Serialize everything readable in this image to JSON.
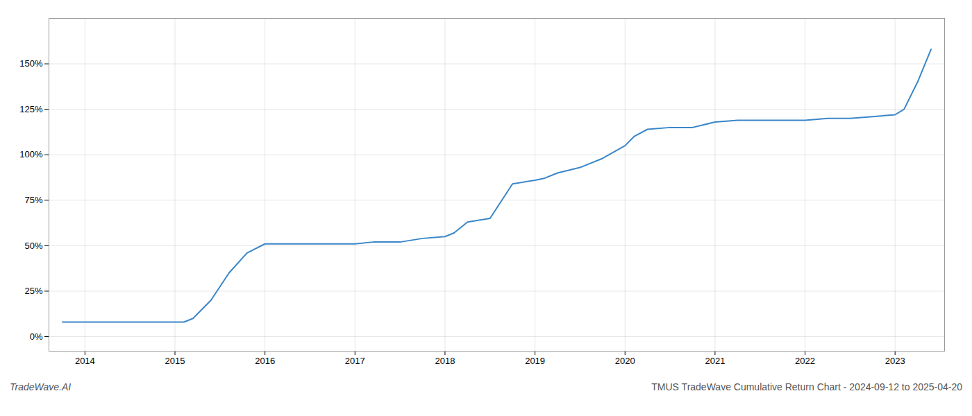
{
  "chart_data": {
    "type": "line",
    "x": [
      2013.75,
      2014.0,
      2014.25,
      2014.5,
      2014.75,
      2015.0,
      2015.1,
      2015.2,
      2015.4,
      2015.6,
      2015.8,
      2016.0,
      2016.1,
      2016.2,
      2016.5,
      2016.75,
      2017.0,
      2017.2,
      2017.5,
      2017.75,
      2018.0,
      2018.1,
      2018.25,
      2018.5,
      2018.75,
      2019.0,
      2019.1,
      2019.25,
      2019.5,
      2019.75,
      2020.0,
      2020.1,
      2020.25,
      2020.5,
      2020.75,
      2021.0,
      2021.25,
      2021.5,
      2021.75,
      2022.0,
      2022.25,
      2022.5,
      2022.75,
      2023.0,
      2023.1,
      2023.25,
      2023.4
    ],
    "values": [
      8,
      8,
      8,
      8,
      8,
      8,
      8,
      10,
      20,
      35,
      46,
      51,
      51,
      51,
      51,
      51,
      51,
      52,
      52,
      54,
      55,
      57,
      63,
      65,
      84,
      86,
      87,
      90,
      93,
      98,
      105,
      110,
      114,
      115,
      115,
      118,
      119,
      119,
      119,
      119,
      120,
      120,
      121,
      122,
      125,
      140,
      158
    ],
    "color": "#3a86c8",
    "xlim": [
      2013.6,
      2023.55
    ],
    "xticks": [
      2014,
      2015,
      2016,
      2017,
      2018,
      2019,
      2020,
      2021,
      2022,
      2023
    ],
    "ylim": [
      -8,
      175
    ],
    "yticks": [
      {
        "value": 0,
        "label": "0%"
      },
      {
        "value": 25,
        "label": "25%"
      },
      {
        "value": 50,
        "label": "50%"
      },
      {
        "value": 75,
        "label": "75%"
      },
      {
        "value": 100,
        "label": "100%"
      },
      {
        "value": 125,
        "label": "125%"
      },
      {
        "value": 150,
        "label": "150%"
      }
    ],
    "grid": true,
    "annotations": [
      "TradeWave.AI",
      "TMUS TradeWave Cumulative Return Chart - 2024-09-12 to 2025-04-20"
    ]
  }
}
